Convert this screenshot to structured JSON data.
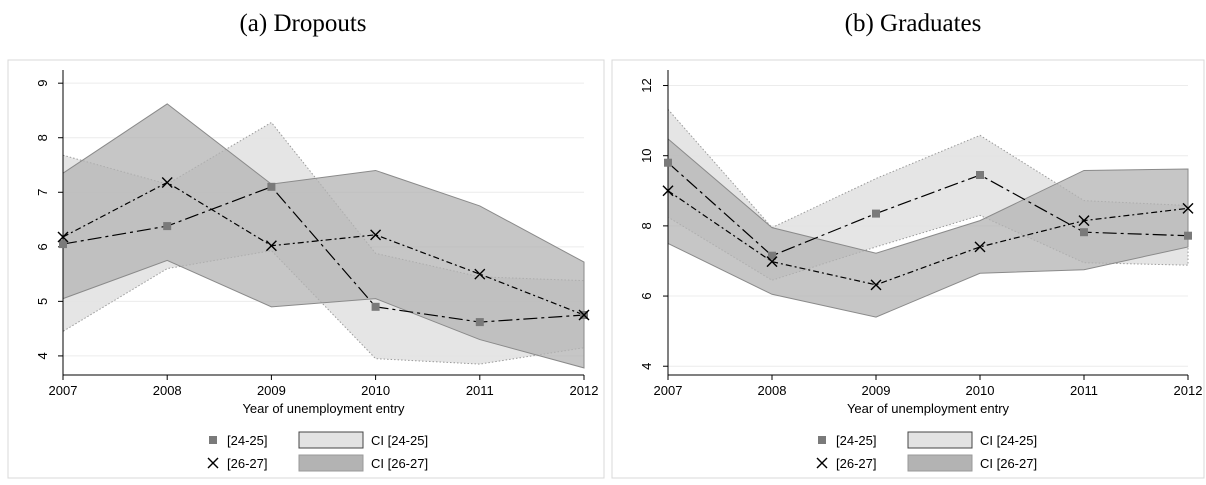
{
  "chart_data": [
    {
      "type": "line",
      "title": "(a) Dropouts",
      "xlabel": "Year of unemployment entry",
      "ylabel": "",
      "x": [
        2007,
        2008,
        2009,
        2010,
        2011,
        2012
      ],
      "xlim": [
        2007,
        2012
      ],
      "ylim": [
        3.65,
        9.15
      ],
      "yticks": [
        4,
        5,
        6,
        7,
        8,
        9
      ],
      "grid": true,
      "legend_position": "bottom",
      "series": [
        {
          "name": "[24-25]",
          "marker": "square",
          "values": [
            6.05,
            6.38,
            7.1,
            4.9,
            4.62,
            4.75
          ]
        },
        {
          "name": "[26-27]",
          "marker": "x",
          "values": [
            6.18,
            7.18,
            6.02,
            6.22,
            5.5,
            4.75
          ]
        }
      ],
      "bands": [
        {
          "name": "CI [24-25]",
          "lower": [
            4.45,
            5.6,
            5.93,
            3.95,
            3.85,
            4.15
          ],
          "upper": [
            7.68,
            7.15,
            8.28,
            5.88,
            5.45,
            5.38
          ]
        },
        {
          "name": "CI [26-27]",
          "lower": [
            5.05,
            5.75,
            4.9,
            5.05,
            4.3,
            3.78
          ],
          "upper": [
            7.35,
            8.62,
            7.15,
            7.4,
            6.75,
            5.72
          ]
        }
      ]
    },
    {
      "type": "line",
      "title": "(b) Graduates",
      "xlabel": "Year of unemployment entry",
      "ylabel": "",
      "x": [
        2007,
        2008,
        2009,
        2010,
        2011,
        2012
      ],
      "xlim": [
        2007,
        2012
      ],
      "ylim": [
        3.75,
        12.3
      ],
      "yticks": [
        4,
        6,
        8,
        10,
        12
      ],
      "grid": true,
      "legend_position": "bottom",
      "series": [
        {
          "name": "[24-25]",
          "marker": "square",
          "values": [
            9.8,
            7.15,
            8.35,
            9.45,
            7.82,
            7.72
          ]
        },
        {
          "name": "[26-27]",
          "marker": "x",
          "values": [
            9.0,
            6.98,
            6.32,
            7.4,
            8.15,
            8.5
          ]
        }
      ],
      "bands": [
        {
          "name": "CI [24-25]",
          "lower": [
            8.25,
            6.45,
            7.4,
            8.3,
            6.95,
            6.88
          ],
          "upper": [
            11.32,
            7.95,
            9.35,
            10.58,
            8.72,
            8.58
          ]
        },
        {
          "name": "CI [26-27]",
          "lower": [
            7.5,
            6.05,
            5.4,
            6.65,
            6.75,
            7.4
          ],
          "upper": [
            10.48,
            7.95,
            7.22,
            8.15,
            9.58,
            9.62
          ]
        }
      ]
    }
  ],
  "colors": {
    "band_24_25": "#e2e2e2",
    "band_26_27": "#b3b3b3",
    "band_24_25_edge": "#9a9a9a",
    "band_26_27_edge": "#8a8a8a",
    "marker_square": "#7a7a7a",
    "line": "#000000",
    "grid": "#ececec"
  }
}
